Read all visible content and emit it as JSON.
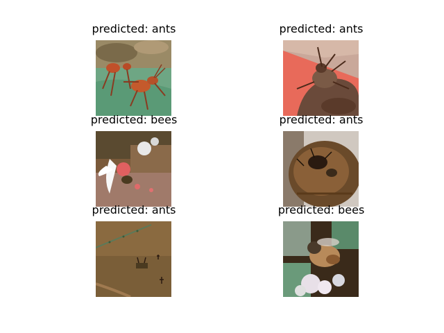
{
  "figure": {
    "panels": [
      {
        "title": "predicted: ants",
        "subject": "red ant on leaf",
        "icon": "ant-photo"
      },
      {
        "title": "predicted: ants",
        "subject": "ant close-up on brown surface",
        "icon": "ant-photo"
      },
      {
        "title": "predicted: bees",
        "subject": "bee on white flower",
        "icon": "bee-photo"
      },
      {
        "title": "predicted: ants",
        "subject": "ants on seed pod",
        "icon": "ant-photo"
      },
      {
        "title": "predicted: ants",
        "subject": "ants on brown ground",
        "icon": "ant-photo"
      },
      {
        "title": "predicted: bees",
        "subject": "bee on flowers",
        "icon": "bee-photo"
      }
    ]
  }
}
